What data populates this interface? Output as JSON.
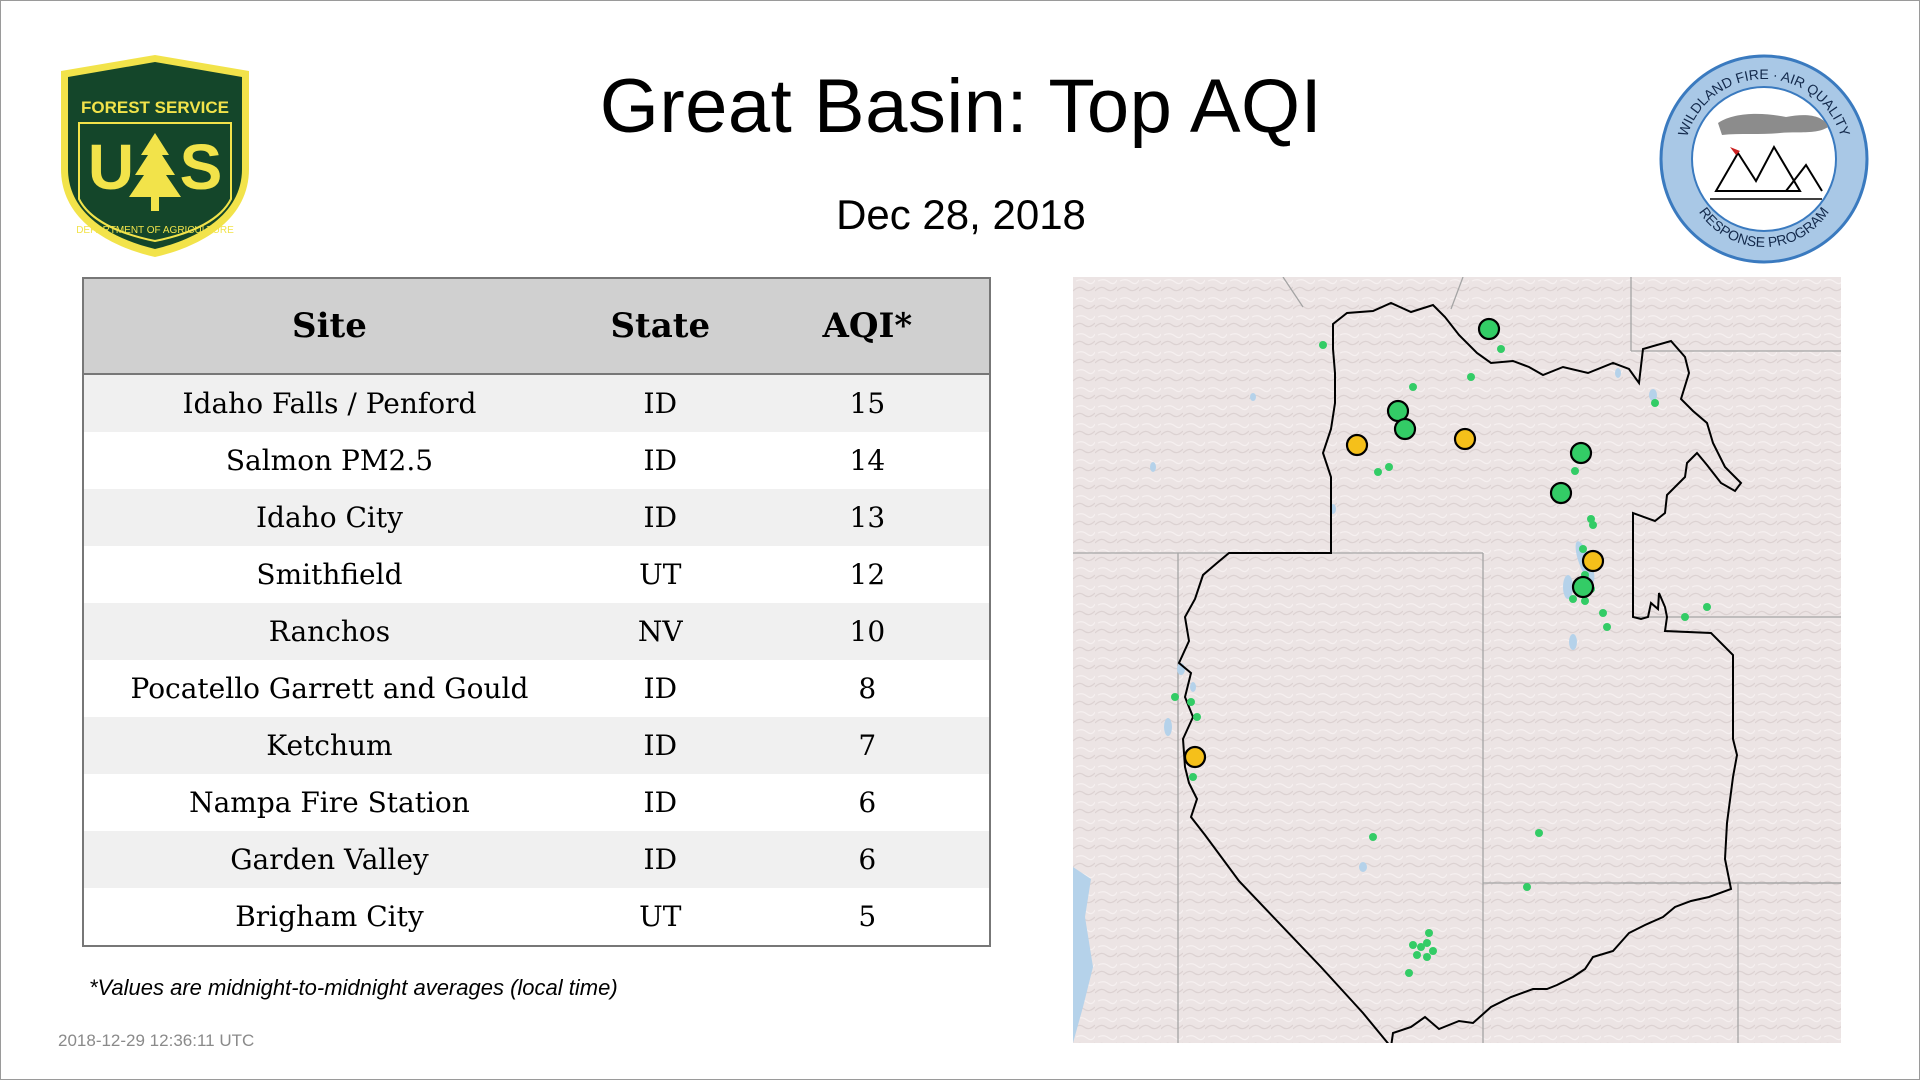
{
  "header": {
    "title": "Great Basin: Top AQI",
    "date": "Dec 28, 2018"
  },
  "logos": {
    "forest_service": {
      "top_text": "FOREST SERVICE",
      "letters": "US",
      "bottom_text": "DEPARTMENT OF AGRICULTURE",
      "colors": {
        "shield": "#14462a",
        "gold": "#f2e34a"
      }
    },
    "wildland_fire": {
      "top_text": "WILDLAND FIRE · AIR QUALITY",
      "bottom_text": "RESPONSE PROGRAM",
      "colors": {
        "ring": "#a9c8e6",
        "border": "#3a7abf",
        "smoke": "#8c8c8c",
        "flame": "#cc2020"
      }
    }
  },
  "table": {
    "headers": {
      "site": "Site",
      "state": "State",
      "aqi": "AQI*"
    },
    "rows": [
      {
        "site": "Idaho Falls / Penford",
        "state": "ID",
        "aqi": "15"
      },
      {
        "site": "Salmon PM2.5",
        "state": "ID",
        "aqi": "14"
      },
      {
        "site": "Idaho City",
        "state": "ID",
        "aqi": "13"
      },
      {
        "site": "Smithfield",
        "state": "UT",
        "aqi": "12"
      },
      {
        "site": "Ranchos",
        "state": "NV",
        "aqi": "10"
      },
      {
        "site": "Pocatello Garrett and Gould",
        "state": "ID",
        "aqi": "8"
      },
      {
        "site": "Ketchum",
        "state": "ID",
        "aqi": "7"
      },
      {
        "site": "Nampa Fire Station",
        "state": "ID",
        "aqi": "6"
      },
      {
        "site": "Garden Valley",
        "state": "ID",
        "aqi": "6"
      },
      {
        "site": "Brigham City",
        "state": "UT",
        "aqi": "5"
      }
    ]
  },
  "footnote": "*Values are midnight-to-midnight averages (local time)",
  "timestamp": "2018-12-29 12:36:11 UTC",
  "map": {
    "colors": {
      "land": "#ece4e4",
      "water": "#b5d2ea",
      "outline": "#000000",
      "state_lines": "#a4a4a4",
      "good": "#33cc66",
      "moderate": "#f5c01a"
    },
    "top_site_status": [
      "good",
      "good",
      "good",
      "moderate",
      "moderate",
      "good",
      "good",
      "moderate",
      "good",
      "moderate"
    ]
  }
}
